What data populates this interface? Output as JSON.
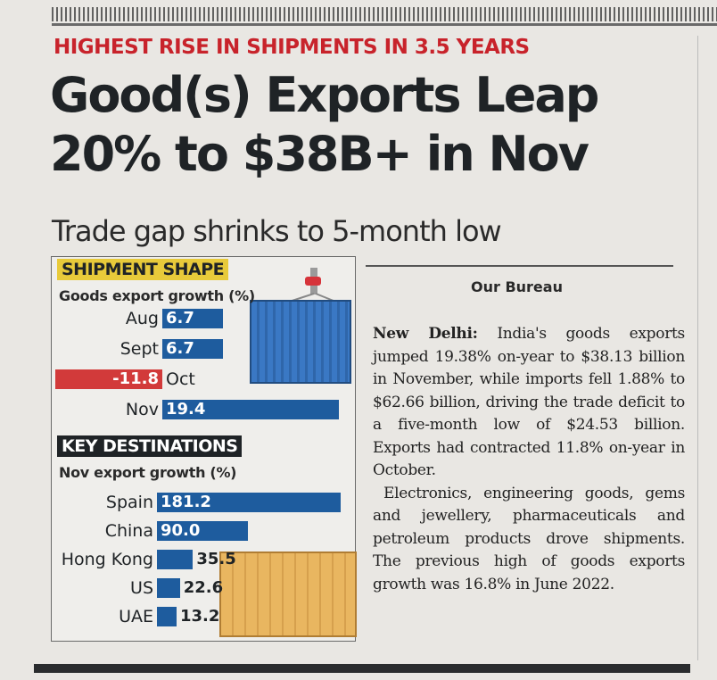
{
  "kicker": "HIGHEST RISE IN SHIPMENTS IN 3.5 YEARS",
  "headline": {
    "line1": "Good(s) Exports Leap",
    "line2": "20% to $38B+ in Nov"
  },
  "subhead": "Trade gap shrinks to 5-month low",
  "colors": {
    "kicker_red": "#c8232b",
    "bar_blue": "#1e5c9e",
    "bar_red": "#d23a3a",
    "label_yellow": "#e8ca3a",
    "label_dark": "#1f2326"
  },
  "chart_data": [
    {
      "type": "bar",
      "section_label": "SHIPMENT SHAPE",
      "title": "Goods export growth (%)",
      "categories": [
        "Aug",
        "Sept",
        "Oct",
        "Nov"
      ],
      "values": [
        6.7,
        6.7,
        -11.8,
        19.4
      ],
      "value_labels": [
        "6.7",
        "6.7",
        "-11.8",
        "19.4"
      ]
    },
    {
      "type": "bar",
      "section_label": "KEY DESTINATIONS",
      "title": "Nov export growth (%)",
      "categories": [
        "Spain",
        "China",
        "Hong Kong",
        "US",
        "UAE"
      ],
      "values": [
        181.2,
        90.0,
        35.5,
        22.6,
        13.2
      ],
      "value_labels": [
        "181.2",
        "90.0",
        "35.5",
        "22.6",
        "13.2"
      ]
    }
  ],
  "article": {
    "byline": "Our Bureau",
    "dateline": "New Delhi:",
    "para1": "India's goods exports jumped 19.38% on-year to $38.13 billion in November, while imports fell 1.88% to $62.66 billion, driving the trade deficit to a five-month low of $24.53 billion. Exports had contracted 11.8% on-year in October.",
    "para2": "Electronics, engineering goods, gems and jewellery, pharmaceuticals and petroleum products drove shipments. The previous high of goods exports growth was 16.8% in June 2022."
  }
}
